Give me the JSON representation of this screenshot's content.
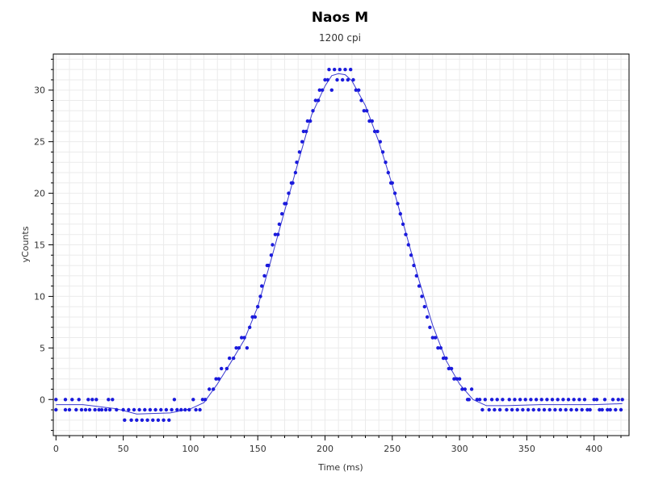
{
  "chart_data": {
    "type": "scatter",
    "title": "Naos M",
    "subtitle": "1200 cpi",
    "xlabel": "Time (ms)",
    "ylabel": "yCounts",
    "xlim": [
      -2,
      426
    ],
    "ylim": [
      -3.5,
      33.5
    ],
    "x_ticks": [
      0,
      50,
      100,
      150,
      200,
      250,
      300,
      350,
      400
    ],
    "y_ticks": [
      0,
      5,
      10,
      15,
      20,
      25,
      30
    ],
    "grid": true,
    "legend": "none",
    "colors": {
      "points": "#1a1adc",
      "line": "#3a3ad0",
      "grid": "#ebebeb",
      "frame": "#000000"
    },
    "series": [
      {
        "kind": "points",
        "points": [
          [
            0,
            0
          ],
          [
            0,
            -1
          ],
          [
            7,
            0
          ],
          [
            7,
            -1
          ],
          [
            10,
            -1
          ],
          [
            12,
            0
          ],
          [
            15,
            -1
          ],
          [
            17,
            0
          ],
          [
            19,
            -1
          ],
          [
            22,
            -1
          ],
          [
            24,
            0
          ],
          [
            25,
            -1
          ],
          [
            27,
            0
          ],
          [
            29,
            -1
          ],
          [
            30,
            0
          ],
          [
            32,
            -1
          ],
          [
            34,
            -1
          ],
          [
            37,
            -1
          ],
          [
            39,
            0
          ],
          [
            40,
            -1
          ],
          [
            42,
            0
          ],
          [
            45,
            -1
          ],
          [
            50,
            -1
          ],
          [
            51,
            -2
          ],
          [
            54,
            -1
          ],
          [
            56,
            -2
          ],
          [
            58,
            -1
          ],
          [
            60,
            -2
          ],
          [
            62,
            -1
          ],
          [
            64,
            -2
          ],
          [
            66,
            -1
          ],
          [
            68,
            -2
          ],
          [
            70,
            -1
          ],
          [
            72,
            -2
          ],
          [
            74,
            -1
          ],
          [
            76,
            -2
          ],
          [
            78,
            -1
          ],
          [
            80,
            -2
          ],
          [
            82,
            -1
          ],
          [
            84,
            -2
          ],
          [
            86,
            -1
          ],
          [
            88,
            0
          ],
          [
            90,
            -1
          ],
          [
            93,
            -1
          ],
          [
            96,
            -1
          ],
          [
            99,
            -1
          ],
          [
            102,
            0
          ],
          [
            104,
            -1
          ],
          [
            107,
            -1
          ],
          [
            109,
            0
          ],
          [
            111,
            0
          ],
          [
            114,
            1
          ],
          [
            117,
            1
          ],
          [
            119,
            2
          ],
          [
            121,
            2
          ],
          [
            123,
            3
          ],
          [
            127,
            3
          ],
          [
            129,
            4
          ],
          [
            132,
            4
          ],
          [
            134,
            5
          ],
          [
            136,
            5
          ],
          [
            138,
            6
          ],
          [
            140,
            6
          ],
          [
            142,
            5
          ],
          [
            144,
            7
          ],
          [
            146,
            8
          ],
          [
            148,
            8
          ],
          [
            150,
            9
          ],
          [
            152,
            10
          ],
          [
            153,
            11
          ],
          [
            155,
            12
          ],
          [
            157,
            13
          ],
          [
            158,
            13
          ],
          [
            160,
            14
          ],
          [
            161,
            15
          ],
          [
            163,
            16
          ],
          [
            165,
            16
          ],
          [
            166,
            17
          ],
          [
            168,
            18
          ],
          [
            170,
            19
          ],
          [
            171,
            19
          ],
          [
            173,
            20
          ],
          [
            175,
            21
          ],
          [
            176,
            21
          ],
          [
            178,
            22
          ],
          [
            179,
            23
          ],
          [
            181,
            24
          ],
          [
            183,
            25
          ],
          [
            184,
            26
          ],
          [
            186,
            26
          ],
          [
            187,
            27
          ],
          [
            189,
            27
          ],
          [
            191,
            28
          ],
          [
            193,
            29
          ],
          [
            195,
            29
          ],
          [
            196,
            30
          ],
          [
            198,
            30
          ],
          [
            200,
            31
          ],
          [
            202,
            31
          ],
          [
            203,
            32
          ],
          [
            205,
            30
          ],
          [
            207,
            32
          ],
          [
            209,
            31
          ],
          [
            211,
            32
          ],
          [
            213,
            31
          ],
          [
            215,
            32
          ],
          [
            217,
            31
          ],
          [
            219,
            32
          ],
          [
            221,
            31
          ],
          [
            223,
            30
          ],
          [
            225,
            30
          ],
          [
            227,
            29
          ],
          [
            229,
            28
          ],
          [
            231,
            28
          ],
          [
            233,
            27
          ],
          [
            235,
            27
          ],
          [
            237,
            26
          ],
          [
            239,
            26
          ],
          [
            241,
            25
          ],
          [
            243,
            24
          ],
          [
            245,
            23
          ],
          [
            247,
            22
          ],
          [
            249,
            21
          ],
          [
            250,
            21
          ],
          [
            252,
            20
          ],
          [
            254,
            19
          ],
          [
            256,
            18
          ],
          [
            258,
            17
          ],
          [
            260,
            16
          ],
          [
            262,
            15
          ],
          [
            264,
            14
          ],
          [
            266,
            13
          ],
          [
            268,
            12
          ],
          [
            270,
            11
          ],
          [
            272,
            10
          ],
          [
            274,
            9
          ],
          [
            276,
            8
          ],
          [
            278,
            7
          ],
          [
            280,
            6
          ],
          [
            282,
            6
          ],
          [
            284,
            5
          ],
          [
            286,
            5
          ],
          [
            288,
            4
          ],
          [
            290,
            4
          ],
          [
            292,
            3
          ],
          [
            294,
            3
          ],
          [
            296,
            2
          ],
          [
            298,
            2
          ],
          [
            300,
            2
          ],
          [
            302,
            1
          ],
          [
            304,
            1
          ],
          [
            306,
            0
          ],
          [
            307,
            0
          ],
          [
            309,
            1
          ],
          [
            313,
            0
          ],
          [
            315,
            0
          ],
          [
            317,
            -1
          ],
          [
            319,
            0
          ],
          [
            322,
            -1
          ],
          [
            324,
            0
          ],
          [
            326,
            -1
          ],
          [
            328,
            0
          ],
          [
            330,
            -1
          ],
          [
            332,
            0
          ],
          [
            335,
            -1
          ],
          [
            337,
            0
          ],
          [
            339,
            -1
          ],
          [
            341,
            0
          ],
          [
            343,
            -1
          ],
          [
            345,
            0
          ],
          [
            347,
            -1
          ],
          [
            349,
            0
          ],
          [
            351,
            -1
          ],
          [
            353,
            0
          ],
          [
            355,
            -1
          ],
          [
            357,
            0
          ],
          [
            359,
            -1
          ],
          [
            361,
            0
          ],
          [
            363,
            -1
          ],
          [
            365,
            0
          ],
          [
            367,
            -1
          ],
          [
            369,
            0
          ],
          [
            371,
            -1
          ],
          [
            373,
            0
          ],
          [
            375,
            -1
          ],
          [
            377,
            0
          ],
          [
            379,
            -1
          ],
          [
            381,
            0
          ],
          [
            383,
            -1
          ],
          [
            385,
            0
          ],
          [
            387,
            -1
          ],
          [
            389,
            0
          ],
          [
            391,
            -1
          ],
          [
            393,
            0
          ],
          [
            395,
            -1
          ],
          [
            397,
            -1
          ],
          [
            400,
            0
          ],
          [
            402,
            0
          ],
          [
            404,
            -1
          ],
          [
            406,
            -1
          ],
          [
            408,
            0
          ],
          [
            410,
            -1
          ],
          [
            412,
            -1
          ],
          [
            414,
            0
          ],
          [
            416,
            -1
          ],
          [
            418,
            0
          ],
          [
            420,
            -1
          ],
          [
            421,
            0
          ]
        ]
      },
      {
        "kind": "line",
        "points": [
          [
            0,
            -0.5
          ],
          [
            20,
            -0.5
          ],
          [
            45,
            -0.9
          ],
          [
            60,
            -1.4
          ],
          [
            85,
            -1.3
          ],
          [
            100,
            -0.9
          ],
          [
            110,
            -0.3
          ],
          [
            120,
            1.5
          ],
          [
            130,
            3.6
          ],
          [
            140,
            5.8
          ],
          [
            150,
            9
          ],
          [
            160,
            13.6
          ],
          [
            170,
            18.3
          ],
          [
            180,
            23
          ],
          [
            190,
            27.6
          ],
          [
            200,
            30.4
          ],
          [
            205,
            31.4
          ],
          [
            210,
            31.6
          ],
          [
            215,
            31.5
          ],
          [
            220,
            30.9
          ],
          [
            230,
            28.5
          ],
          [
            240,
            25
          ],
          [
            250,
            20.8
          ],
          [
            260,
            16.2
          ],
          [
            270,
            11.5
          ],
          [
            280,
            7.2
          ],
          [
            290,
            3.8
          ],
          [
            300,
            1.5
          ],
          [
            310,
            0
          ],
          [
            320,
            -0.6
          ],
          [
            335,
            -0.6
          ],
          [
            360,
            -0.5
          ],
          [
            400,
            -0.5
          ],
          [
            421,
            -0.4
          ]
        ]
      }
    ]
  }
}
